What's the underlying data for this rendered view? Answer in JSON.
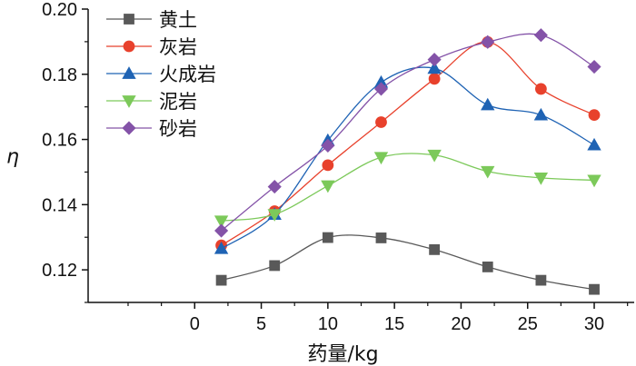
{
  "chart_data": {
    "type": "line",
    "title": "",
    "xlabel": "药量/kg",
    "ylabel": "η",
    "xlim": [
      -8,
      33
    ],
    "ylim": [
      0.11,
      0.2
    ],
    "x_ticks": [
      0,
      5,
      10,
      15,
      20,
      25,
      30
    ],
    "y_ticks": [
      0.12,
      0.14,
      0.16,
      0.18,
      0.2
    ],
    "y_tick_labels": [
      "0.12",
      "0.14",
      "0.16",
      "0.18",
      "0.20"
    ],
    "legend_position": "top-left",
    "x": [
      2,
      6,
      10,
      14,
      18,
      22,
      26,
      30
    ],
    "series": [
      {
        "name": "黄土",
        "marker": "square",
        "color": "#595959",
        "values": [
          0.1168,
          0.1213,
          0.1299,
          0.1298,
          0.1262,
          0.1209,
          0.1168,
          0.114
        ]
      },
      {
        "name": "灰岩",
        "marker": "circle",
        "color": "#e8412c",
        "values": [
          0.1275,
          0.138,
          0.1521,
          0.1653,
          0.1786,
          0.1899,
          0.1755,
          0.1675
        ]
      },
      {
        "name": "火成岩",
        "marker": "triangle-up",
        "color": "#1f63b4",
        "values": [
          0.1265,
          0.137,
          0.1597,
          0.1775,
          0.1818,
          0.1706,
          0.1675,
          0.1583
        ]
      },
      {
        "name": "泥岩",
        "marker": "triangle-down",
        "color": "#7cc95a",
        "values": [
          0.135,
          0.137,
          0.1458,
          0.1545,
          0.1552,
          0.1502,
          0.1482,
          0.1475
        ]
      },
      {
        "name": "砂岩",
        "marker": "diamond",
        "color": "#8453a8",
        "values": [
          0.132,
          0.1455,
          0.1581,
          0.1755,
          0.1845,
          0.1899,
          0.192,
          0.1823
        ]
      }
    ]
  }
}
